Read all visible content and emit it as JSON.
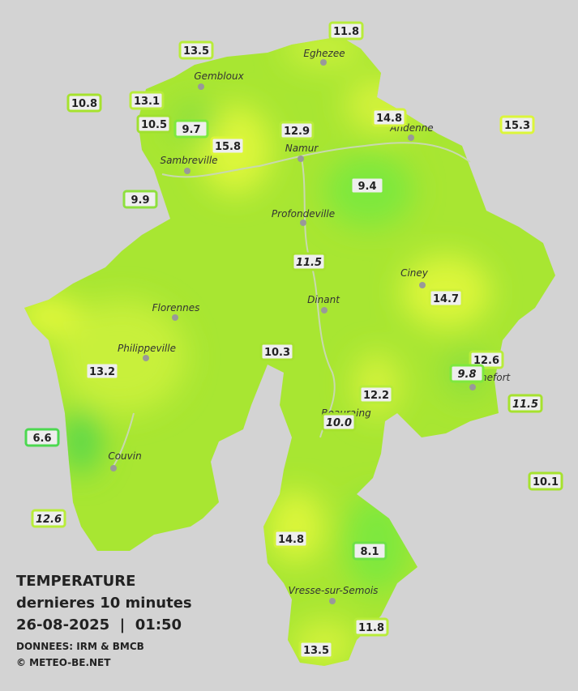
{
  "title": [
    "TEMPERATURE",
    "dernieres 10 minutes",
    "26-08-2025  |  01:50"
  ],
  "source": "DONNEES: IRM & BMCB",
  "copyright": "© METEO-BE.NET",
  "towns": [
    "Eghezee",
    "Gembloux",
    "Andenne",
    "Namur",
    "Sambreville",
    "Profondeville",
    "Ciney",
    "Dinant",
    "Florennes",
    "Philippeville",
    "Couvin",
    "Vresse-sur-Semois",
    "Rochefort",
    "Beauraing"
  ],
  "stations": [
    {
      "value": "13.5"
    },
    {
      "value": "11.8"
    },
    {
      "value": "10.8"
    },
    {
      "value": "13.1"
    },
    {
      "value": "10.5"
    },
    {
      "value": "9.7"
    },
    {
      "value": "15.8"
    },
    {
      "value": "12.9"
    },
    {
      "value": "14.8"
    },
    {
      "value": "15.3"
    },
    {
      "value": "9.9"
    },
    {
      "value": "9.4"
    },
    {
      "value": "11.5",
      "italic": true
    },
    {
      "value": "14.7"
    },
    {
      "value": "10.3"
    },
    {
      "value": "12.6"
    },
    {
      "value": "9.8",
      "italic": true
    },
    {
      "value": "13.2"
    },
    {
      "value": "12.2"
    },
    {
      "value": "10.0",
      "italic": true
    },
    {
      "value": "11.5",
      "italic": true
    },
    {
      "value": "6.6"
    },
    {
      "value": "10.1"
    },
    {
      "value": "12.6",
      "italic": true
    },
    {
      "value": "14.8"
    },
    {
      "value": "8.1"
    },
    {
      "value": "11.8"
    },
    {
      "value": "13.5"
    }
  ]
}
